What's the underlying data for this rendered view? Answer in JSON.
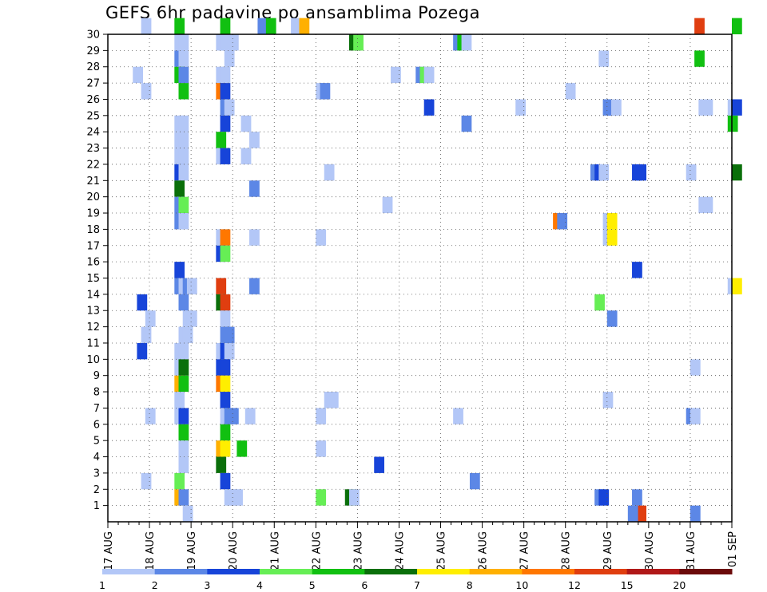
{
  "chart_data": {
    "type": "heatmap",
    "title": "GEFS 6hr padavine po ansamblima Pozega",
    "xlabel": "",
    "ylabel": "",
    "x_tick_labels": [
      "17 AUG",
      "18 AUG",
      "19 AUG",
      "20 AUG",
      "21 AUG",
      "22 AUG",
      "23 AUG",
      "24 AUG",
      "25 AUG",
      "26 AUG",
      "27 AUG",
      "28 AUG",
      "29 AUG",
      "30 AUG",
      "31 AUG",
      "01 SEP"
    ],
    "y_tick_labels": [
      "1",
      "2",
      "3",
      "4",
      "5",
      "6",
      "7",
      "8",
      "9",
      "10",
      "11",
      "12",
      "13",
      "14",
      "15",
      "16",
      "17",
      "18",
      "19",
      "20",
      "21",
      "22",
      "23",
      "24",
      "25",
      "26",
      "27",
      "28",
      "29",
      "30"
    ],
    "x_range": [
      "17 AUG 00Z",
      "01 SEP 00Z"
    ],
    "time_step_hours": 6,
    "y_range": [
      0,
      30
    ],
    "grid": true,
    "colorbar": {
      "position": "bottom",
      "labels": [
        "1",
        "2",
        "3",
        "4",
        "5",
        "6",
        "7",
        "8",
        "10",
        "12",
        "15",
        "20"
      ],
      "colors": [
        "#b3c7f7",
        "#5c87e6",
        "#1744d9",
        "#66ee55",
        "#11c011",
        "#0a6f0a",
        "#ffee00",
        "#ffb000",
        "#ff7700",
        "#e03e10",
        "#b01818",
        "#6b0a0a"
      ]
    },
    "note": "values are 6-hour precipitation class index (1-12 maps to colorbar colors); x is 6h step index from 17 AUG 00Z, y is ensemble member",
    "cells": [
      [
        8,
        30,
        1
      ],
      [
        16,
        30,
        5
      ],
      [
        27,
        30,
        5
      ],
      [
        36,
        30,
        2
      ],
      [
        38,
        30,
        5
      ],
      [
        44,
        30,
        1
      ],
      [
        46,
        30,
        8
      ],
      [
        141,
        30,
        10
      ],
      [
        150,
        30,
        5
      ],
      [
        16,
        29,
        1
      ],
      [
        17,
        29,
        1
      ],
      [
        26,
        29,
        1
      ],
      [
        27,
        29,
        1
      ],
      [
        28,
        29,
        1
      ],
      [
        29,
        29,
        1
      ],
      [
        58,
        29,
        6
      ],
      [
        59,
        29,
        4
      ],
      [
        83,
        29,
        2
      ],
      [
        84,
        29,
        5
      ],
      [
        85,
        29,
        1
      ],
      [
        16,
        28,
        2
      ],
      [
        17,
        28,
        1
      ],
      [
        28,
        28,
        1
      ],
      [
        118,
        28,
        1
      ],
      [
        141,
        28,
        5
      ],
      [
        6,
        27,
        1
      ],
      [
        16,
        27,
        5
      ],
      [
        17,
        27,
        2
      ],
      [
        26,
        27,
        1
      ],
      [
        27,
        27,
        1
      ],
      [
        68,
        27,
        1
      ],
      [
        74,
        27,
        2
      ],
      [
        75,
        27,
        4
      ],
      [
        76,
        27,
        1
      ],
      [
        8,
        26,
        1
      ],
      [
        17,
        26,
        5
      ],
      [
        26,
        26,
        9
      ],
      [
        27,
        26,
        3
      ],
      [
        50,
        26,
        1
      ],
      [
        51,
        26,
        2
      ],
      [
        110,
        26,
        1
      ],
      [
        27,
        25,
        2
      ],
      [
        28,
        25,
        1
      ],
      [
        76,
        25,
        3
      ],
      [
        98,
        25,
        1
      ],
      [
        119,
        25,
        2
      ],
      [
        120,
        25,
        2
      ],
      [
        121,
        25,
        1
      ],
      [
        142,
        25,
        1
      ],
      [
        143,
        25,
        1
      ],
      [
        149,
        25,
        1
      ],
      [
        150,
        25,
        3
      ],
      [
        16,
        24,
        1
      ],
      [
        17,
        24,
        1
      ],
      [
        27,
        24,
        3
      ],
      [
        32,
        24,
        1
      ],
      [
        85,
        24,
        2
      ],
      [
        149,
        24,
        5
      ],
      [
        16,
        23,
        1
      ],
      [
        17,
        23,
        1
      ],
      [
        26,
        23,
        5
      ],
      [
        34,
        23,
        1
      ],
      [
        16,
        22,
        1
      ],
      [
        17,
        22,
        1
      ],
      [
        26,
        22,
        1
      ],
      [
        27,
        22,
        3
      ],
      [
        32,
        22,
        1
      ],
      [
        16,
        21,
        3
      ],
      [
        17,
        21,
        1
      ],
      [
        52,
        21,
        1
      ],
      [
        116,
        21,
        2
      ],
      [
        117,
        21,
        3
      ],
      [
        118,
        21,
        1
      ],
      [
        126,
        21,
        3
      ],
      [
        127,
        21,
        3
      ],
      [
        139,
        21,
        1
      ],
      [
        150,
        21,
        6
      ],
      [
        16,
        20,
        6
      ],
      [
        34,
        20,
        2
      ],
      [
        16,
        19,
        2
      ],
      [
        17,
        19,
        4
      ],
      [
        66,
        19,
        1
      ],
      [
        142,
        19,
        1
      ],
      [
        143,
        19,
        1
      ],
      [
        16,
        18,
        2
      ],
      [
        17,
        18,
        1
      ],
      [
        107,
        18,
        9
      ],
      [
        108,
        18,
        2
      ],
      [
        119,
        18,
        1
      ],
      [
        120,
        18,
        7
      ],
      [
        26,
        17,
        1
      ],
      [
        27,
        17,
        9
      ],
      [
        34,
        17,
        1
      ],
      [
        50,
        17,
        1
      ],
      [
        119,
        17,
        1
      ],
      [
        120,
        17,
        7
      ],
      [
        26,
        16,
        3
      ],
      [
        27,
        16,
        4
      ],
      [
        16,
        15,
        3
      ],
      [
        126,
        15,
        3
      ],
      [
        16,
        14,
        2
      ],
      [
        17,
        14,
        1
      ],
      [
        18,
        14,
        2
      ],
      [
        19,
        14,
        1
      ],
      [
        26,
        14,
        10
      ],
      [
        34,
        14,
        2
      ],
      [
        149,
        14,
        1
      ],
      [
        150,
        14,
        7
      ],
      [
        7,
        13,
        3
      ],
      [
        17,
        13,
        2
      ],
      [
        26,
        13,
        6
      ],
      [
        27,
        13,
        10
      ],
      [
        117,
        13,
        4
      ],
      [
        9,
        12,
        1
      ],
      [
        18,
        12,
        1
      ],
      [
        19,
        12,
        1
      ],
      [
        27,
        12,
        1
      ],
      [
        120,
        12,
        2
      ],
      [
        8,
        11,
        1
      ],
      [
        17,
        11,
        1
      ],
      [
        18,
        11,
        1
      ],
      [
        27,
        11,
        2
      ],
      [
        28,
        11,
        2
      ],
      [
        16,
        10,
        1
      ],
      [
        17,
        10,
        1
      ],
      [
        7,
        10,
        3
      ],
      [
        26,
        10,
        1
      ],
      [
        27,
        10,
        3
      ],
      [
        28,
        10,
        1
      ],
      [
        16,
        9,
        1
      ],
      [
        17,
        9,
        6
      ],
      [
        26,
        9,
        3
      ],
      [
        27,
        9,
        3
      ],
      [
        140,
        9,
        1
      ],
      [
        16,
        8,
        8
      ],
      [
        17,
        8,
        5
      ],
      [
        26,
        8,
        9
      ],
      [
        27,
        8,
        7
      ],
      [
        16,
        7,
        1
      ],
      [
        27,
        7,
        3
      ],
      [
        52,
        7,
        1
      ],
      [
        53,
        7,
        1
      ],
      [
        119,
        7,
        1
      ],
      [
        9,
        6,
        1
      ],
      [
        16,
        6,
        1
      ],
      [
        17,
        6,
        3
      ],
      [
        27,
        6,
        1
      ],
      [
        28,
        6,
        2
      ],
      [
        29,
        6,
        2
      ],
      [
        33,
        6,
        1
      ],
      [
        50,
        6,
        1
      ],
      [
        83,
        6,
        1
      ],
      [
        139,
        6,
        2
      ],
      [
        140,
        6,
        1
      ],
      [
        17,
        5,
        5
      ],
      [
        27,
        5,
        5
      ],
      [
        17,
        4,
        1
      ],
      [
        26,
        4,
        8
      ],
      [
        27,
        4,
        7
      ],
      [
        31,
        4,
        5
      ],
      [
        50,
        4,
        1
      ],
      [
        17,
        3,
        1
      ],
      [
        26,
        3,
        6
      ],
      [
        64,
        3,
        3
      ],
      [
        8,
        2,
        1
      ],
      [
        16,
        2,
        4
      ],
      [
        27,
        2,
        3
      ],
      [
        87,
        2,
        2
      ],
      [
        16,
        1,
        8
      ],
      [
        17,
        1,
        2
      ],
      [
        28,
        1,
        1
      ],
      [
        29,
        1,
        1
      ],
      [
        30,
        1,
        1
      ],
      [
        50,
        1,
        4
      ],
      [
        57,
        1,
        6
      ],
      [
        58,
        1,
        1
      ],
      [
        117,
        1,
        2
      ],
      [
        118,
        1,
        3
      ],
      [
        126,
        1,
        2
      ],
      [
        18,
        0,
        1
      ],
      [
        127,
        0,
        10
      ],
      [
        125,
        0,
        2
      ],
      [
        140,
        0,
        2
      ]
    ]
  }
}
